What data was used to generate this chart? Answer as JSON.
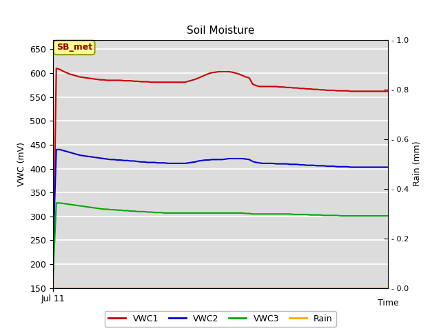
{
  "title": "Soil Moisture",
  "xlabel": "Time",
  "ylabel_left": "VWC (mV)",
  "ylabel_right": "Rain (mm)",
  "xlim": [
    0,
    100
  ],
  "ylim_left": [
    150,
    670
  ],
  "ylim_right": [
    0.0,
    1.0
  ],
  "yticks_left": [
    150,
    200,
    250,
    300,
    350,
    400,
    450,
    500,
    550,
    600,
    650
  ],
  "yticks_right": [
    0.0,
    0.2,
    0.4,
    0.6,
    0.8,
    1.0
  ],
  "bg_color": "#dcdcdc",
  "fig_bg": "#ffffff",
  "grid_color": "#ffffff",
  "annotation_text": "SB_met",
  "annotation_box_color": "#ffff99",
  "annotation_box_edge": "#999900",
  "annotation_text_color": "#990000",
  "x_tick_label": "Jul 11",
  "legend_entries": [
    "VWC1",
    "VWC2",
    "VWC3",
    "Rain"
  ],
  "legend_colors": [
    "#cc0000",
    "#0000cc",
    "#00aa00",
    "#ffaa00"
  ],
  "line_colors": {
    "VWC1": "#cc0000",
    "VWC2": "#0000cc",
    "VWC3": "#00aa00",
    "Rain": "#ffaa00"
  },
  "VWC1": [
    150,
    610,
    608,
    604,
    601,
    598,
    596,
    594,
    592,
    591,
    590,
    589,
    588,
    587,
    586,
    586,
    585,
    585,
    585,
    585,
    585,
    584,
    584,
    584,
    583,
    583,
    582,
    582,
    582,
    581,
    581,
    581,
    581,
    581,
    581,
    581,
    581,
    581,
    581,
    581,
    583,
    585,
    587,
    590,
    593,
    596,
    599,
    601,
    602,
    603,
    603,
    603,
    603,
    602,
    600,
    598,
    595,
    592,
    590,
    577,
    574,
    572,
    572,
    572,
    572,
    572,
    572,
    571,
    571,
    570,
    570,
    569,
    569,
    568,
    568,
    567,
    567,
    566,
    566,
    565,
    565,
    564,
    564,
    564,
    563,
    563,
    563,
    563,
    562,
    562,
    562,
    562,
    562,
    562,
    562,
    562,
    562,
    562,
    562,
    562
  ],
  "VWC2": [
    220,
    440,
    440,
    438,
    436,
    434,
    432,
    430,
    428,
    427,
    426,
    425,
    424,
    423,
    422,
    421,
    420,
    419,
    419,
    418,
    418,
    417,
    417,
    416,
    416,
    415,
    414,
    414,
    413,
    413,
    413,
    412,
    412,
    412,
    411,
    411,
    411,
    411,
    411,
    411,
    412,
    413,
    414,
    416,
    417,
    418,
    418,
    419,
    419,
    419,
    419,
    420,
    421,
    421,
    421,
    421,
    421,
    420,
    419,
    415,
    413,
    412,
    411,
    411,
    411,
    411,
    410,
    410,
    410,
    410,
    409,
    409,
    409,
    408,
    408,
    407,
    407,
    407,
    406,
    406,
    406,
    405,
    405,
    405,
    404,
    404,
    404,
    404,
    403,
    403,
    403,
    403,
    403,
    403,
    403,
    403,
    403,
    403,
    403,
    403
  ],
  "VWC3": [
    170,
    328,
    328,
    327,
    326,
    325,
    324,
    323,
    322,
    321,
    320,
    319,
    318,
    317,
    316,
    315,
    315,
    314,
    314,
    313,
    313,
    312,
    312,
    311,
    311,
    310,
    310,
    310,
    309,
    309,
    308,
    308,
    308,
    307,
    307,
    307,
    307,
    307,
    307,
    307,
    307,
    307,
    307,
    307,
    307,
    307,
    307,
    307,
    307,
    307,
    307,
    307,
    307,
    307,
    307,
    307,
    307,
    306,
    306,
    305,
    305,
    305,
    305,
    305,
    305,
    305,
    305,
    305,
    305,
    305,
    305,
    304,
    304,
    304,
    304,
    304,
    303,
    303,
    303,
    303,
    302,
    302,
    302,
    302,
    302,
    301,
    301,
    301,
    301,
    301,
    301,
    301,
    301,
    301,
    301,
    301,
    301,
    301,
    301,
    301
  ],
  "Rain": [
    0.0,
    0.0,
    0.0,
    0.0,
    0.0,
    0.0,
    0.0,
    0.0,
    0.0,
    0.0,
    0.0,
    0.0,
    0.0,
    0.0,
    0.0,
    0.0,
    0.0,
    0.0,
    0.0,
    0.0,
    0.0,
    0.0,
    0.0,
    0.0,
    0.0,
    0.0,
    0.0,
    0.0,
    0.0,
    0.0,
    0.0,
    0.0,
    0.0,
    0.0,
    0.0,
    0.0,
    0.0,
    0.0,
    0.0,
    0.0,
    0.0,
    0.0,
    0.0,
    0.0,
    0.0,
    0.0,
    0.0,
    0.0,
    0.0,
    0.0,
    0.0,
    0.0,
    0.0,
    0.0,
    0.0,
    0.0,
    0.0,
    0.0,
    0.0,
    0.0,
    0.0,
    0.0,
    0.0,
    0.0,
    0.0,
    0.0,
    0.0,
    0.0,
    0.0,
    0.0,
    0.0,
    0.0,
    0.0,
    0.0,
    0.0,
    0.0,
    0.0,
    0.0,
    0.0,
    0.0,
    0.0,
    0.0,
    0.0,
    0.0,
    0.0,
    0.0,
    0.0,
    0.0,
    0.0,
    0.0,
    0.0,
    0.0,
    0.0,
    0.0,
    0.0,
    0.0,
    0.0,
    0.0,
    0.0,
    0.0
  ]
}
